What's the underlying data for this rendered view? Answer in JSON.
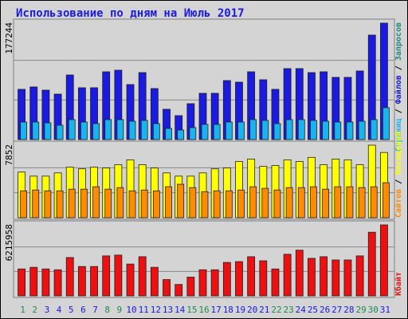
{
  "title": "Использование по дням на Июль 2017",
  "legend_separator": " / ",
  "chart_data": [
    {
      "type": "bar",
      "ylim": [
        0,
        177244
      ],
      "yticks": [
        177244
      ],
      "series": [
        {
          "name": "Файлов",
          "color": "#1a1ae0",
          "values": [
            76482,
            80124,
            75268,
            69198,
            98334,
            78910,
            78910,
            103190,
            105618,
            83766,
            101976,
            77696,
            46132,
            36420,
            54630,
            70412,
            70412,
            89836,
            87408,
            103190,
            91050,
            76482,
            108046,
            108046,
            101976,
            103190,
            94692,
            94692,
            104404,
            159034,
            177244
          ]
        },
        {
          "name": "Страниц",
          "color": "#19b4f0",
          "values": [
            26700,
            26700,
            25500,
            21850,
            30350,
            26700,
            24280,
            30350,
            30350,
            27920,
            29140,
            24280,
            17000,
            14570,
            18210,
            23070,
            23070,
            26700,
            26700,
            30350,
            29140,
            24280,
            30350,
            30350,
            29140,
            27920,
            26700,
            26700,
            27920,
            30350,
            48560
          ]
        }
      ],
      "legend_extra": [
        {
          "name": "Запросов",
          "color": "#208a80"
        }
      ]
    },
    {
      "type": "bar",
      "ylim": [
        0,
        7852
      ],
      "yticks": [
        7852
      ],
      "series": [
        {
          "name": "Посещений",
          "color": "#ffff00",
          "values": [
            4940,
            4500,
            4500,
            4850,
            5470,
            5290,
            5470,
            5380,
            5730,
            6260,
            5730,
            5380,
            4850,
            4500,
            4500,
            4850,
            5290,
            5380,
            6090,
            6350,
            5560,
            5640,
            6260,
            6090,
            6530,
            5730,
            6350,
            6260,
            5730,
            7852,
            7060
          ]
        },
        {
          "name": "Сайтов",
          "color": "#ff8c00",
          "values": [
            2910,
            3000,
            2910,
            2910,
            3090,
            3090,
            3350,
            3090,
            3260,
            2910,
            3000,
            2910,
            3350,
            3620,
            3260,
            2820,
            2910,
            2910,
            3000,
            3350,
            3180,
            3000,
            3260,
            3260,
            3350,
            3090,
            3350,
            3350,
            3260,
            3350,
            3790
          ]
        }
      ]
    },
    {
      "type": "bar",
      "ylim": [
        0,
        6215958
      ],
      "yticks": [
        6215958
      ],
      "series": [
        {
          "name": "Кбайт",
          "color": "#ee1010",
          "values": [
            2357800,
            2500700,
            2357800,
            2286300,
            3358100,
            2572100,
            2572100,
            3501000,
            3572400,
            2786500,
            3429500,
            2500700,
            1429000,
            1000300,
            1643300,
            2286300,
            2286300,
            2929400,
            3000800,
            3429500,
            3072300,
            2357800,
            3643800,
            4001100,
            3286600,
            3429500,
            3143700,
            3143700,
            3501000,
            5573000,
            6215958
          ]
        }
      ],
      "categories": [
        "1",
        "2",
        "3",
        "4",
        "5",
        "6",
        "7",
        "8",
        "9",
        "10",
        "11",
        "12",
        "13",
        "14",
        "15",
        "16",
        "17",
        "18",
        "19",
        "20",
        "21",
        "22",
        "23",
        "24",
        "25",
        "26",
        "27",
        "28",
        "29",
        "30",
        "31"
      ],
      "category_colors": [
        "#208a50",
        "#208a50",
        "#1a1ae0",
        "#1a1ae0",
        "#1a1ae0",
        "#1a1ae0",
        "#1a1ae0",
        "#208a50",
        "#208a50",
        "#1a1ae0",
        "#1a1ae0",
        "#1a1ae0",
        "#1a1ae0",
        "#1a1ae0",
        "#208a50",
        "#208a50",
        "#1a1ae0",
        "#1a1ae0",
        "#1a1ae0",
        "#1a1ae0",
        "#1a1ae0",
        "#208a50",
        "#208a50",
        "#1a1ae0",
        "#1a1ae0",
        "#1a1ae0",
        "#1a1ae0",
        "#1a1ae0",
        "#208a50",
        "#208a50",
        "#1a1ae0"
      ]
    }
  ]
}
